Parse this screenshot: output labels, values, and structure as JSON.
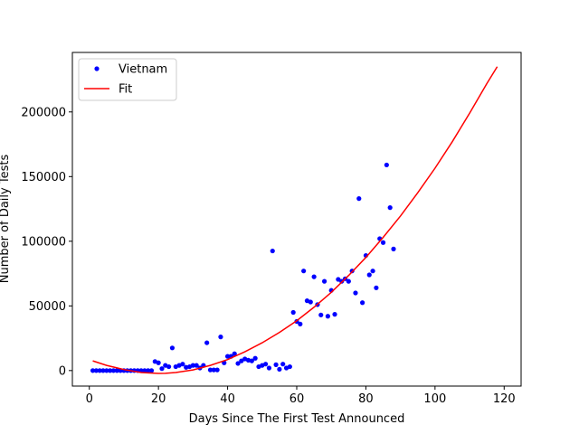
{
  "chart_data": {
    "type": "scatter",
    "title": "",
    "xlabel": "Days Since The First Test Announced",
    "ylabel": "Number of Daily Tests",
    "xlim": [
      -4.9,
      124.9
    ],
    "ylim": [
      -12000,
      246000
    ],
    "xticks": [
      0,
      20,
      40,
      60,
      80,
      100,
      120
    ],
    "yticks": [
      0,
      50000,
      100000,
      150000,
      200000
    ],
    "grid": false,
    "legend_position": "top-left",
    "series": [
      {
        "name": "Vietnam",
        "style": "points",
        "color": "#0000ff",
        "x": [
          1,
          2,
          3,
          4,
          5,
          6,
          7,
          8,
          9,
          10,
          11,
          12,
          13,
          14,
          15,
          16,
          17,
          18,
          19,
          20,
          21,
          22,
          23,
          24,
          25,
          26,
          27,
          28,
          29,
          30,
          31,
          32,
          33,
          34,
          35,
          36,
          37,
          38,
          39,
          40,
          41,
          42,
          43,
          44,
          45,
          46,
          47,
          48,
          49,
          50,
          51,
          52,
          53,
          54,
          55,
          56,
          57,
          58,
          59,
          60,
          61,
          62,
          63,
          64,
          65,
          66,
          67,
          68,
          69,
          70,
          71,
          72,
          73,
          74,
          75,
          76,
          77,
          78,
          79,
          80,
          81,
          82,
          83,
          84,
          85,
          86,
          87,
          88
        ],
        "y": [
          0,
          0,
          0,
          0,
          0,
          0,
          0,
          0,
          0,
          0,
          0,
          0,
          0,
          0,
          0,
          0,
          0,
          0,
          7000,
          6000,
          1500,
          4000,
          3000,
          17500,
          3000,
          4000,
          5000,
          2500,
          3000,
          4000,
          4000,
          2000,
          4000,
          21500,
          500,
          500,
          500,
          26000,
          6000,
          11000,
          11000,
          13000,
          5500,
          7500,
          9000,
          8000,
          7500,
          9500,
          3000,
          4000,
          5000,
          2000,
          92500,
          4500,
          1000,
          5000,
          2000,
          3000,
          45000,
          38000,
          36000,
          77000,
          54000,
          53000,
          72500,
          51000,
          43000,
          69000,
          42000,
          62000,
          43500,
          70500,
          69000,
          71000,
          69000,
          77000,
          60000,
          133000,
          52500,
          89000,
          74000,
          77000,
          64000,
          102000,
          99000,
          159000,
          126000,
          94000
        ]
      },
      {
        "name": "Fit",
        "style": "line",
        "color": "#ff0000",
        "x": [
          1,
          5,
          10,
          15,
          20,
          22,
          25,
          30,
          35,
          40,
          45,
          50,
          55,
          60,
          65,
          70,
          75,
          80,
          85,
          90,
          95,
          100,
          105,
          110,
          115,
          118
        ],
        "y": [
          7500,
          4000,
          800,
          -1500,
          -2200,
          -2100,
          -1500,
          500,
          4000,
          8500,
          14500,
          21500,
          29500,
          38500,
          49000,
          60500,
          73500,
          87500,
          103000,
          119500,
          137500,
          156500,
          177000,
          199000,
          222000,
          235000
        ]
      }
    ]
  }
}
